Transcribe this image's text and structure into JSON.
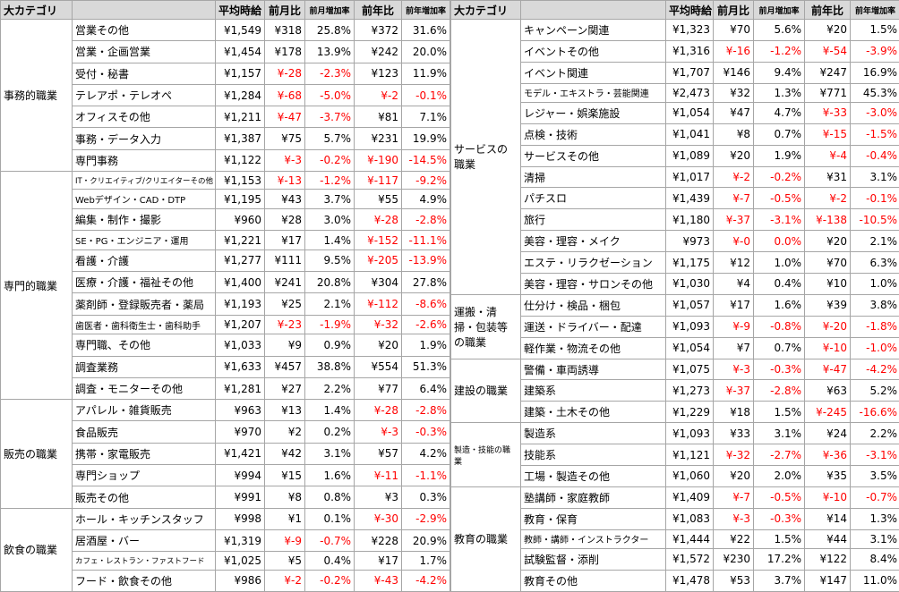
{
  "tables": [
    {
      "headers": [
        "大カテゴリ",
        "平均時給",
        "前月比",
        "前月増加率",
        "前年比",
        "前年増加率"
      ],
      "groups": [
        {
          "category": "事務的職業",
          "rows": [
            [
              "営業その他",
              "¥1,549",
              "¥318",
              "25.8%",
              "¥372",
              "31.6%"
            ],
            [
              "営業・企画営業",
              "¥1,454",
              "¥178",
              "13.9%",
              "¥242",
              "20.0%"
            ],
            [
              "受付・秘書",
              "¥1,157",
              "¥-28",
              "-2.3%",
              "¥123",
              "11.9%"
            ],
            [
              "テレアポ・テレオペ",
              "¥1,284",
              "¥-68",
              "-5.0%",
              "¥-2",
              "-0.1%"
            ],
            [
              "オフィスその他",
              "¥1,211",
              "¥-47",
              "-3.7%",
              "¥81",
              "7.1%"
            ],
            [
              "事務・データ入力",
              "¥1,387",
              "¥75",
              "5.7%",
              "¥231",
              "19.9%"
            ],
            [
              "専門事務",
              "¥1,122",
              "¥-3",
              "-0.2%",
              "¥-190",
              "-14.5%"
            ]
          ]
        },
        {
          "category": "専門的職業",
          "rows": [
            [
              "IT・クリエイティブ/クリエイターその他",
              "¥1,153",
              "¥-13",
              "-1.2%",
              "¥-117",
              "-9.2%"
            ],
            [
              "Webデザイン・CAD・DTP",
              "¥1,195",
              "¥43",
              "3.7%",
              "¥55",
              "4.9%"
            ],
            [
              "編集・制作・撮影",
              "¥960",
              "¥28",
              "3.0%",
              "¥-28",
              "-2.8%"
            ],
            [
              "SE・PG・エンジニア・運用",
              "¥1,221",
              "¥17",
              "1.4%",
              "¥-152",
              "-11.1%"
            ],
            [
              "看護・介護",
              "¥1,277",
              "¥111",
              "9.5%",
              "¥-205",
              "-13.9%"
            ],
            [
              "医療・介護・福祉その他",
              "¥1,400",
              "¥241",
              "20.8%",
              "¥304",
              "27.8%"
            ],
            [
              "薬剤師・登録販売者・薬局",
              "¥1,193",
              "¥25",
              "2.1%",
              "¥-112",
              "-8.6%"
            ],
            [
              "歯医者・歯科衛生士・歯科助手",
              "¥1,207",
              "¥-23",
              "-1.9%",
              "¥-32",
              "-2.6%"
            ],
            [
              "専門職、その他",
              "¥1,033",
              "¥9",
              "0.9%",
              "¥20",
              "1.9%"
            ],
            [
              "調査業務",
              "¥1,633",
              "¥457",
              "38.8%",
              "¥554",
              "51.3%"
            ],
            [
              "調査・モニターその他",
              "¥1,281",
              "¥27",
              "2.2%",
              "¥77",
              "6.4%"
            ]
          ]
        },
        {
          "category": "販売の職業",
          "rows": [
            [
              "アパレル・雑貨販売",
              "¥963",
              "¥13",
              "1.4%",
              "¥-28",
              "-2.8%"
            ],
            [
              "食品販売",
              "¥970",
              "¥2",
              "0.2%",
              "¥-3",
              "-0.3%"
            ],
            [
              "携帯・家電販売",
              "¥1,421",
              "¥42",
              "3.1%",
              "¥57",
              "4.2%"
            ],
            [
              "専門ショップ",
              "¥994",
              "¥15",
              "1.6%",
              "¥-11",
              "-1.1%"
            ],
            [
              "販売その他",
              "¥991",
              "¥8",
              "0.8%",
              "¥3",
              "0.3%"
            ]
          ]
        },
        {
          "category": "飲食の職業",
          "rows": [
            [
              "ホール・キッチンスタッフ",
              "¥998",
              "¥1",
              "0.1%",
              "¥-30",
              "-2.9%"
            ],
            [
              "居酒屋・バー",
              "¥1,319",
              "¥-9",
              "-0.7%",
              "¥228",
              "20.9%"
            ],
            [
              "カフェ・レストラン・ファストフード",
              "¥1,025",
              "¥5",
              "0.4%",
              "¥17",
              "1.7%"
            ],
            [
              "フード・飲食その他",
              "¥986",
              "¥-2",
              "-0.2%",
              "¥-43",
              "-4.2%"
            ]
          ]
        }
      ]
    },
    {
      "headers": [
        "大カテゴリ",
        "平均時給",
        "前月比",
        "前月増加率",
        "前年比",
        "前年増加率"
      ],
      "groups": [
        {
          "category": "サービスの職業",
          "rows": [
            [
              "キャンペーン関連",
              "¥1,323",
              "¥70",
              "5.6%",
              "¥20",
              "1.5%"
            ],
            [
              "イベントその他",
              "¥1,316",
              "¥-16",
              "-1.2%",
              "¥-54",
              "-3.9%"
            ],
            [
              "イベント関連",
              "¥1,707",
              "¥146",
              "9.4%",
              "¥247",
              "16.9%"
            ],
            [
              "モデル・エキストラ・芸能関連",
              "¥2,473",
              "¥32",
              "1.3%",
              "¥771",
              "45.3%"
            ],
            [
              "レジャー・娯楽施設",
              "¥1,054",
              "¥47",
              "4.7%",
              "¥-33",
              "-3.0%"
            ],
            [
              "点検・技術",
              "¥1,041",
              "¥8",
              "0.7%",
              "¥-15",
              "-1.5%"
            ],
            [
              "サービスその他",
              "¥1,089",
              "¥20",
              "1.9%",
              "¥-4",
              "-0.4%"
            ],
            [
              "清掃",
              "¥1,017",
              "¥-2",
              "-0.2%",
              "¥31",
              "3.1%"
            ],
            [
              "パチスロ",
              "¥1,439",
              "¥-7",
              "-0.5%",
              "¥-2",
              "-0.1%"
            ],
            [
              "旅行",
              "¥1,180",
              "¥-37",
              "-3.1%",
              "¥-138",
              "-10.5%"
            ],
            [
              "美容・理容・メイク",
              "¥973",
              "¥-0",
              "0.0%",
              "¥20",
              "2.1%"
            ],
            [
              "エステ・リラクゼーション",
              "¥1,175",
              "¥12",
              "1.0%",
              "¥70",
              "6.3%"
            ],
            [
              "美容・理容・サロンその他",
              "¥1,030",
              "¥4",
              "0.4%",
              "¥10",
              "1.0%"
            ]
          ]
        },
        {
          "category": "運搬・清掃・包装等の職業",
          "rows": [
            [
              "仕分け・検品・梱包",
              "¥1,057",
              "¥17",
              "1.6%",
              "¥39",
              "3.8%"
            ],
            [
              "運送・ドライバー・配達",
              "¥1,093",
              "¥-9",
              "-0.8%",
              "¥-20",
              "-1.8%"
            ],
            [
              "軽作業・物流その他",
              "¥1,054",
              "¥7",
              "0.7%",
              "¥-10",
              "-1.0%"
            ]
          ]
        },
        {
          "category": "建設の職業",
          "rows": [
            [
              "警備・車両誘導",
              "¥1,075",
              "¥-3",
              "-0.3%",
              "¥-47",
              "-4.2%"
            ],
            [
              "建築系",
              "¥1,273",
              "¥-37",
              "-2.8%",
              "¥63",
              "5.2%"
            ],
            [
              "建築・土木その他",
              "¥1,229",
              "¥18",
              "1.5%",
              "¥-245",
              "-16.6%"
            ]
          ]
        },
        {
          "category": "製造・技能の職業",
          "rows": [
            [
              "製造系",
              "¥1,093",
              "¥33",
              "3.1%",
              "¥24",
              "2.2%"
            ],
            [
              "技能系",
              "¥1,121",
              "¥-32",
              "-2.7%",
              "¥-36",
              "-3.1%"
            ],
            [
              "工場・製造その他",
              "¥1,060",
              "¥20",
              "2.0%",
              "¥35",
              "3.5%"
            ]
          ]
        },
        {
          "category": "教育の職業",
          "rows": [
            [
              "塾講師・家庭教師",
              "¥1,409",
              "¥-7",
              "-0.5%",
              "¥-10",
              "-0.7%"
            ],
            [
              "教育・保育",
              "¥1,083",
              "¥-3",
              "-0.3%",
              "¥14",
              "1.3%"
            ],
            [
              "教師・講師・インストラクター",
              "¥1,444",
              "¥22",
              "1.5%",
              "¥44",
              "3.1%"
            ],
            [
              "試験監督・添削",
              "¥1,572",
              "¥230",
              "17.2%",
              "¥122",
              "8.4%"
            ],
            [
              "教育その他",
              "¥1,478",
              "¥53",
              "3.7%",
              "¥147",
              "11.0%"
            ]
          ]
        }
      ]
    }
  ]
}
